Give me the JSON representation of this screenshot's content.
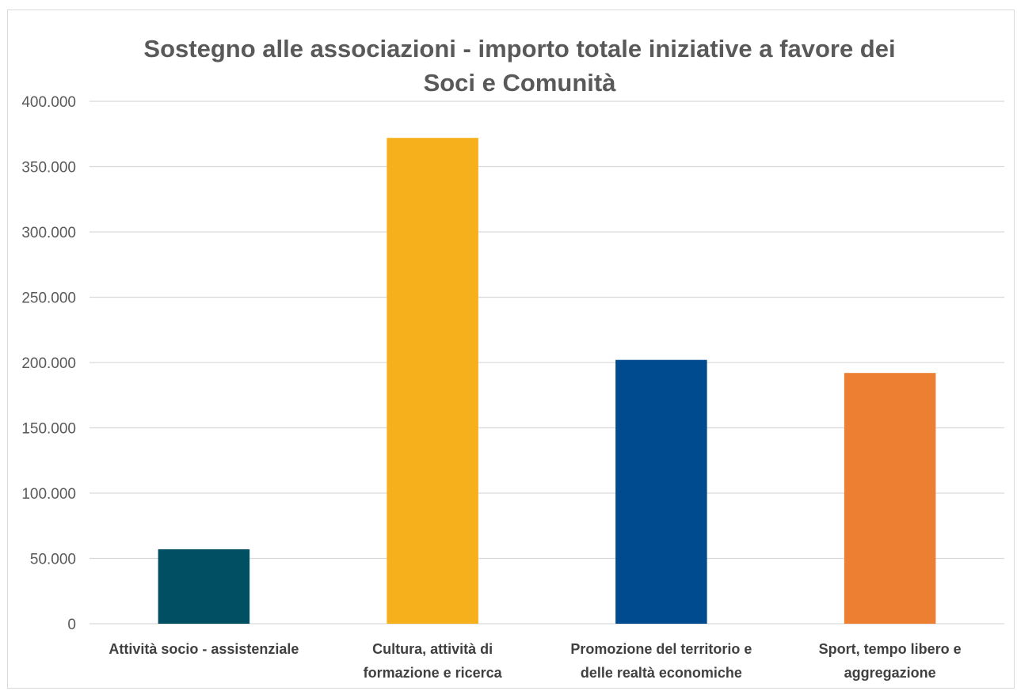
{
  "chart_data": {
    "type": "bar",
    "title": [
      "Sostegno alle associazioni -  importo totale iniziative a favore dei",
      "Soci e Comunità"
    ],
    "xlabel": "",
    "ylabel": "",
    "ylim": [
      0,
      400000
    ],
    "y_ticks": [
      0,
      50000,
      100000,
      150000,
      200000,
      250000,
      300000,
      350000,
      400000
    ],
    "y_tick_labels": [
      "0",
      "50.000",
      "100.000",
      "150.000",
      "200.000",
      "250.000",
      "300.000",
      "350.000",
      "400.000"
    ],
    "grid": true,
    "legend": "none",
    "categories": [
      [
        "Attività socio - assistenziale"
      ],
      [
        "Cultura, attività di",
        "formazione e ricerca"
      ],
      [
        "Promozione del territorio e",
        "delle realtà economiche"
      ],
      [
        "Sport, tempo libero e",
        "aggregazione"
      ]
    ],
    "values": [
      57000,
      372000,
      202000,
      192000
    ],
    "colors": [
      "#004f63",
      "#f5b01c",
      "#004a8f",
      "#ec7f32"
    ]
  }
}
